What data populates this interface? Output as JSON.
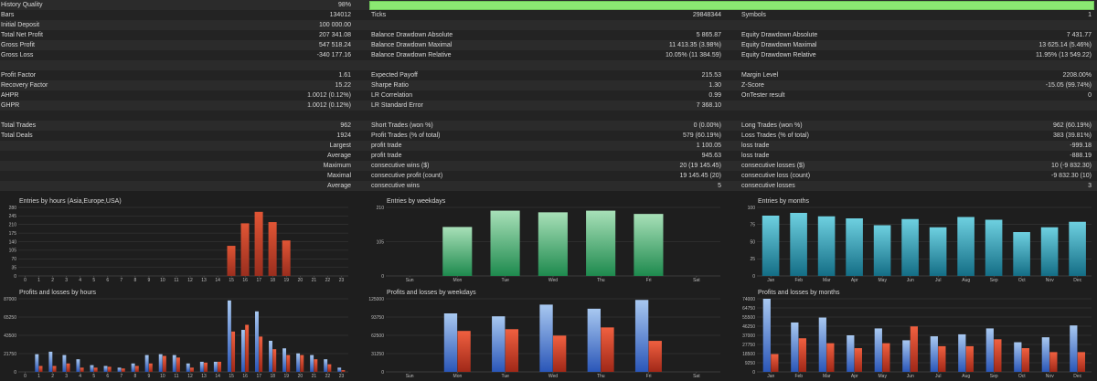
{
  "history_quality": {
    "label": "History Quality",
    "value": "98%",
    "fill_fraction": 0.98,
    "bar_color": "#8be872"
  },
  "rows": [
    {
      "c1l": "Bars",
      "c1v": "134012",
      "c2l": "Ticks",
      "c2v": "29848344",
      "c3l": "Symbols",
      "c3v": "1"
    },
    {
      "c1l": "Initial Deposit",
      "c1v": "100 000.00",
      "c2l": "",
      "c2v": "",
      "c3l": "",
      "c3v": ""
    },
    {
      "c1l": "Total Net Profit",
      "c1v": "207 341.08",
      "c2l": "Balance Drawdown Absolute",
      "c2v": "5 865.87",
      "c3l": "Equity Drawdown Absolute",
      "c3v": "7 431.77"
    },
    {
      "c1l": "Gross Profit",
      "c1v": "547 518.24",
      "c2l": "Balance Drawdown Maximal",
      "c2v": "11 413.35 (3.98%)",
      "c3l": "Equity Drawdown Maximal",
      "c3v": "13 625.14 (5.46%)"
    },
    {
      "c1l": "Gross Loss",
      "c1v": "-340 177.16",
      "c2l": "Balance Drawdown Relative",
      "c2v": "10.05% (11 384.59)",
      "c3l": "Equity Drawdown Relative",
      "c3v": "11.95% (13 549.22)"
    },
    {
      "c1l": "",
      "c1v": "",
      "c2l": "",
      "c2v": "",
      "c3l": "",
      "c3v": ""
    },
    {
      "c1l": "Profit Factor",
      "c1v": "1.61",
      "c2l": "Expected Payoff",
      "c2v": "215.53",
      "c3l": "Margin Level",
      "c3v": "2208.00%"
    },
    {
      "c1l": "Recovery Factor",
      "c1v": "15.22",
      "c2l": "Sharpe Ratio",
      "c2v": "1.30",
      "c3l": "Z-Score",
      "c3v": "-15.05 (99.74%)"
    },
    {
      "c1l": "AHPR",
      "c1v": "1.0012 (0.12%)",
      "c2l": "LR Correlation",
      "c2v": "0.99",
      "c3l": "OnTester result",
      "c3v": "0"
    },
    {
      "c1l": "GHPR",
      "c1v": "1.0012 (0.12%)",
      "c2l": "LR Standard Error",
      "c2v": "7 368.10",
      "c3l": "",
      "c3v": ""
    },
    {
      "c1l": "",
      "c1v": "",
      "c2l": "",
      "c2v": "",
      "c3l": "",
      "c3v": ""
    },
    {
      "c1l": "Total Trades",
      "c1v": "962",
      "c2l": "Short Trades (won %)",
      "c2v": "0 (0.00%)",
      "c3l": "Long Trades (won %)",
      "c3v": "962 (60.19%)"
    },
    {
      "c1l": "Total Deals",
      "c1v": "1924",
      "c2l": "Profit Trades (% of total)",
      "c2v": "579 (60.19%)",
      "c3l": "Loss Trades (% of total)",
      "c3v": "383 (39.81%)"
    },
    {
      "c1l": "",
      "c1v": "Largest",
      "c2l": "profit trade",
      "c2v": "1 100.05",
      "c3l": "loss trade",
      "c3v": "-999.18",
      "right": true
    },
    {
      "c1l": "",
      "c1v": "Average",
      "c2l": "profit trade",
      "c2v": "945.63",
      "c3l": "loss trade",
      "c3v": "-888.19",
      "right": true
    },
    {
      "c1l": "",
      "c1v": "Maximum",
      "c2l": "consecutive wins ($)",
      "c2v": "20 (19 145.45)",
      "c3l": "consecutive losses ($)",
      "c3v": "10 (-9 832.30)",
      "right": true
    },
    {
      "c1l": "",
      "c1v": "Maximal",
      "c2l": "consecutive profit (count)",
      "c2v": "19 145.45 (20)",
      "c3l": "consecutive loss (count)",
      "c3v": "-9 832.30 (10)",
      "right": true
    },
    {
      "c1l": "",
      "c1v": "Average",
      "c2l": "consecutive wins",
      "c2v": "5",
      "c3l": "consecutive losses",
      "c3v": "3",
      "right": true
    }
  ],
  "chart_data": [
    {
      "id": "entries-hours",
      "type": "bar",
      "title": "Entries by hours (Asia,Europe,USA)",
      "categories": [
        "0",
        "1",
        "2",
        "3",
        "4",
        "5",
        "6",
        "7",
        "8",
        "9",
        "10",
        "11",
        "12",
        "13",
        "14",
        "15",
        "16",
        "17",
        "18",
        "19",
        "20",
        "21",
        "22",
        "23"
      ],
      "yticks": [
        "0",
        "35",
        "70",
        "105",
        "140",
        "175",
        "210",
        "245",
        "280"
      ],
      "ylim": [
        0,
        280
      ],
      "values": [
        0,
        0,
        0,
        0,
        0,
        0,
        0,
        0,
        0,
        0,
        0,
        0,
        0,
        0,
        0,
        123,
        215,
        262,
        220,
        145,
        0,
        0,
        0,
        0
      ],
      "colors": {
        "top": "#e05535",
        "bottom": "#9a2e1e"
      }
    },
    {
      "id": "entries-weekdays",
      "type": "bar",
      "title": "Entries by weekdays",
      "categories": [
        "Sun",
        "Mon",
        "Tue",
        "Wed",
        "Thu",
        "Fri",
        "Sat"
      ],
      "yticks": [
        "0",
        "105",
        "210"
      ],
      "ylim": [
        0,
        210
      ],
      "values": [
        0,
        150,
        200,
        195,
        200,
        190,
        0
      ],
      "colors": {
        "top": "#a8e0b8",
        "bottom": "#1e8a4e"
      }
    },
    {
      "id": "entries-months",
      "type": "bar",
      "title": "Entries by months",
      "categories": [
        "Jan",
        "Feb",
        "Mar",
        "Apr",
        "May",
        "Jun",
        "Jul",
        "Aug",
        "Sep",
        "Oct",
        "Nov",
        "Dec"
      ],
      "yticks": [
        "0",
        "25",
        "50",
        "75",
        "100"
      ],
      "ylim": [
        0,
        100
      ],
      "values": [
        88,
        92,
        87,
        84,
        74,
        83,
        71,
        86,
        82,
        64,
        71,
        79
      ],
      "colors": {
        "top": "#6ed0e0",
        "bottom": "#146e86"
      }
    },
    {
      "id": "pl-hours",
      "type": "bar",
      "title": "Profits and losses by hours",
      "categories": [
        "0",
        "1",
        "2",
        "3",
        "4",
        "5",
        "6",
        "7",
        "8",
        "9",
        "10",
        "11",
        "12",
        "13",
        "14",
        "15",
        "16",
        "17",
        "18",
        "19",
        "20",
        "21",
        "22",
        "23"
      ],
      "yticks": [
        "0",
        "21750",
        "43500",
        "65250",
        "87000"
      ],
      "ylim": [
        0,
        87000
      ],
      "series": [
        {
          "values": [
            0,
            21000,
            24000,
            20000,
            15000,
            8000,
            7000,
            5000,
            10000,
            20000,
            21000,
            20000,
            10000,
            12000,
            12000,
            85000,
            50000,
            72000,
            37000,
            28000,
            22000,
            20000,
            15000,
            5000
          ],
          "colors": {
            "top": "#a8c8f0",
            "bottom": "#2a56b8"
          }
        },
        {
          "values": [
            0,
            7000,
            7000,
            10000,
            5000,
            5000,
            6000,
            4000,
            7000,
            10000,
            19000,
            17000,
            5000,
            11000,
            12000,
            48000,
            56000,
            42000,
            27000,
            20000,
            20000,
            15000,
            9000,
            2000
          ],
          "colors": {
            "top": "#f06040",
            "bottom": "#a02818"
          }
        }
      ]
    },
    {
      "id": "pl-weekdays",
      "type": "bar",
      "title": "Profits and losses by weekdays",
      "categories": [
        "Sun",
        "Mon",
        "Tue",
        "Wed",
        "Thu",
        "Fri",
        "Sat"
      ],
      "yticks": [
        "0",
        "31250",
        "62500",
        "93750",
        "125000"
      ],
      "ylim": [
        0,
        125000
      ],
      "series": [
        {
          "values": [
            0,
            100000,
            95000,
            115000,
            108000,
            123000,
            0
          ],
          "colors": {
            "top": "#a8c8f0",
            "bottom": "#2a56b8"
          }
        },
        {
          "values": [
            0,
            70000,
            73000,
            62000,
            76000,
            53000,
            0
          ],
          "colors": {
            "top": "#f06040",
            "bottom": "#a02818"
          }
        }
      ]
    },
    {
      "id": "pl-months",
      "type": "bar",
      "title": "Profits and losses by months",
      "categories": [
        "Jan",
        "Feb",
        "Mar",
        "Apr",
        "May",
        "Jun",
        "Jul",
        "Aug",
        "Sep",
        "Oct",
        "Nov",
        "Dec"
      ],
      "yticks": [
        "0",
        "9250",
        "18500",
        "27750",
        "37000",
        "46250",
        "55500",
        "64750",
        "74000"
      ],
      "ylim": [
        0,
        74000
      ],
      "series": [
        {
          "values": [
            74000,
            50000,
            55000,
            37000,
            44000,
            32000,
            36000,
            38000,
            44000,
            30000,
            35000,
            47000
          ],
          "colors": {
            "top": "#a8c8f0",
            "bottom": "#2a56b8"
          }
        },
        {
          "values": [
            18000,
            34000,
            29000,
            24000,
            29000,
            46000,
            26000,
            26000,
            33000,
            24000,
            20000,
            20000
          ],
          "colors": {
            "top": "#f06040",
            "bottom": "#a02818"
          }
        }
      ]
    }
  ]
}
